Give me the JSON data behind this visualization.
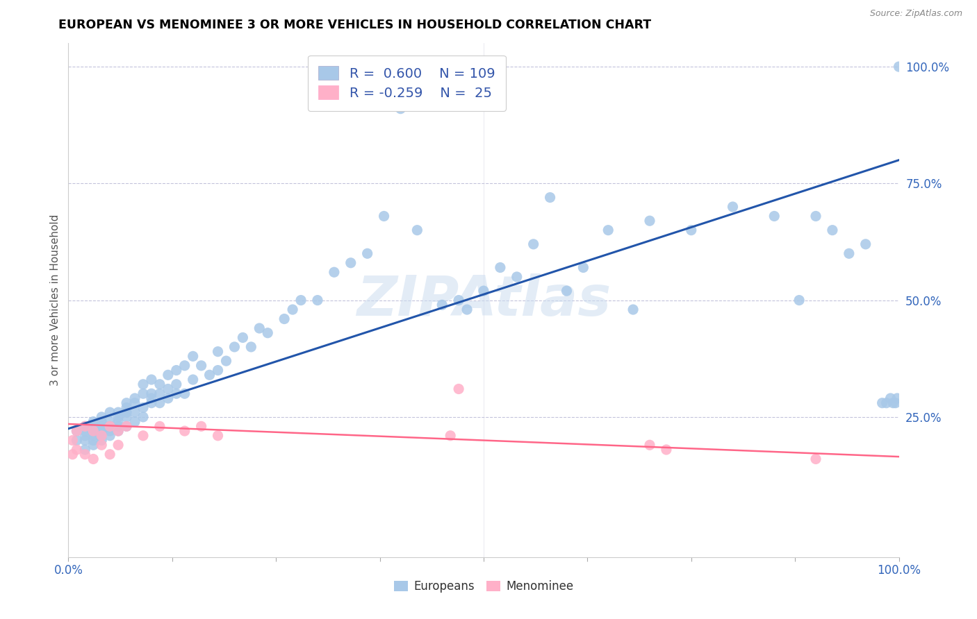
{
  "title": "EUROPEAN VS MENOMINEE 3 OR MORE VEHICLES IN HOUSEHOLD CORRELATION CHART",
  "source_text": "Source: ZipAtlas.com",
  "ylabel": "3 or more Vehicles in Household",
  "xlim": [
    0.0,
    1.0
  ],
  "ylim": [
    -0.05,
    1.05
  ],
  "ytick_vals": [
    0.25,
    0.5,
    0.75,
    1.0
  ],
  "ytick_labels": [
    "25.0%",
    "50.0%",
    "75.0%",
    "100.0%"
  ],
  "legend_r1": "R =  0.600",
  "legend_n1": "N = 109",
  "legend_r2": "R = -0.259",
  "legend_n2": "N =  25",
  "blue_scatter_color": "#A8C8E8",
  "pink_scatter_color": "#FFB0C8",
  "blue_line_color": "#2255AA",
  "pink_line_color": "#FF6688",
  "watermark": "ZIPAtlas",
  "blue_trend_x0": 0.0,
  "blue_trend_y0": 0.225,
  "blue_trend_x1": 1.0,
  "blue_trend_y1": 0.8,
  "pink_trend_x0": 0.0,
  "pink_trend_y0": 0.235,
  "pink_trend_x1": 1.0,
  "pink_trend_y1": 0.165,
  "europeans_x": [
    0.01,
    0.01,
    0.02,
    0.02,
    0.02,
    0.02,
    0.02,
    0.03,
    0.03,
    0.03,
    0.03,
    0.03,
    0.03,
    0.04,
    0.04,
    0.04,
    0.04,
    0.04,
    0.04,
    0.04,
    0.05,
    0.05,
    0.05,
    0.05,
    0.05,
    0.05,
    0.06,
    0.06,
    0.06,
    0.06,
    0.06,
    0.07,
    0.07,
    0.07,
    0.07,
    0.07,
    0.08,
    0.08,
    0.08,
    0.08,
    0.09,
    0.09,
    0.09,
    0.09,
    0.1,
    0.1,
    0.1,
    0.1,
    0.11,
    0.11,
    0.11,
    0.12,
    0.12,
    0.12,
    0.13,
    0.13,
    0.13,
    0.14,
    0.14,
    0.15,
    0.15,
    0.16,
    0.17,
    0.18,
    0.18,
    0.19,
    0.2,
    0.21,
    0.22,
    0.23,
    0.24,
    0.26,
    0.27,
    0.28,
    0.3,
    0.32,
    0.34,
    0.36,
    0.38,
    0.4,
    0.42,
    0.45,
    0.47,
    0.48,
    0.5,
    0.52,
    0.54,
    0.56,
    0.58,
    0.6,
    0.62,
    0.65,
    0.68,
    0.7,
    0.75,
    0.8,
    0.85,
    0.88,
    0.9,
    0.92,
    0.94,
    0.96,
    0.98,
    0.985,
    0.99,
    0.993,
    0.996,
    0.998,
    1.0
  ],
  "europeans_y": [
    0.2,
    0.22,
    0.18,
    0.21,
    0.23,
    0.2,
    0.22,
    0.19,
    0.22,
    0.24,
    0.21,
    0.23,
    0.2,
    0.22,
    0.25,
    0.2,
    0.23,
    0.21,
    0.24,
    0.22,
    0.23,
    0.26,
    0.22,
    0.24,
    0.21,
    0.23,
    0.25,
    0.23,
    0.26,
    0.22,
    0.24,
    0.27,
    0.25,
    0.28,
    0.23,
    0.26,
    0.28,
    0.26,
    0.29,
    0.24,
    0.3,
    0.27,
    0.32,
    0.25,
    0.3,
    0.28,
    0.33,
    0.29,
    0.32,
    0.3,
    0.28,
    0.34,
    0.31,
    0.29,
    0.35,
    0.32,
    0.3,
    0.36,
    0.3,
    0.38,
    0.33,
    0.36,
    0.34,
    0.39,
    0.35,
    0.37,
    0.4,
    0.42,
    0.4,
    0.44,
    0.43,
    0.46,
    0.48,
    0.5,
    0.5,
    0.56,
    0.58,
    0.6,
    0.68,
    0.91,
    0.65,
    0.49,
    0.5,
    0.48,
    0.52,
    0.57,
    0.55,
    0.62,
    0.72,
    0.52,
    0.57,
    0.65,
    0.48,
    0.67,
    0.65,
    0.7,
    0.68,
    0.5,
    0.68,
    0.65,
    0.6,
    0.62,
    0.28,
    0.28,
    0.29,
    0.28,
    0.28,
    0.29,
    1.0
  ],
  "menominee_x": [
    0.005,
    0.005,
    0.01,
    0.01,
    0.02,
    0.02,
    0.03,
    0.03,
    0.04,
    0.04,
    0.05,
    0.05,
    0.06,
    0.06,
    0.07,
    0.09,
    0.11,
    0.14,
    0.16,
    0.18,
    0.46,
    0.47,
    0.7,
    0.72,
    0.9
  ],
  "menominee_y": [
    0.2,
    0.17,
    0.22,
    0.18,
    0.23,
    0.17,
    0.22,
    0.16,
    0.21,
    0.19,
    0.23,
    0.17,
    0.22,
    0.19,
    0.23,
    0.21,
    0.23,
    0.22,
    0.23,
    0.21,
    0.21,
    0.31,
    0.19,
    0.18,
    0.16
  ]
}
